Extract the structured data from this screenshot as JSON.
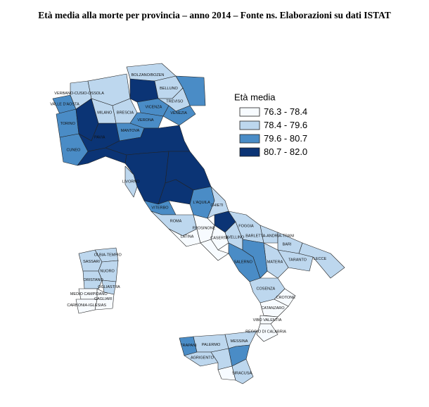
{
  "title": "Età media alla morte per provincia – anno 2014 – Fonte ns. Elaborazioni su dati ISTAT",
  "legend": {
    "title": "Età media",
    "classes": [
      {
        "label": "76.3 - 78.4",
        "color": "#f7fbff"
      },
      {
        "label": "78.4 - 79.6",
        "color": "#bdd7ee"
      },
      {
        "label": "79.6 - 80.7",
        "color": "#4a8cc6"
      },
      {
        "label": "80.7 - 82.0",
        "color": "#0b3475"
      }
    ]
  },
  "areas": [
    {
      "name": "VALLE D'AOSTA",
      "class": 2
    },
    {
      "name": "TORINO",
      "class": 2
    },
    {
      "name": "CUNEO",
      "class": 2
    },
    {
      "name": "VERBANO-CUSIO-OSSOLA",
      "class": 1
    },
    {
      "class": 3
    },
    {
      "class": 3
    },
    {
      "name": "PAVIA",
      "class": 3
    },
    {
      "class": 1
    },
    {
      "name": "MILANO",
      "class": 1
    },
    {
      "name": "BRESCIA",
      "class": 1
    },
    {
      "name": "BOLZANO/BOZEN",
      "class": 1
    },
    {
      "class": 3
    },
    {
      "name": "BELLUNO",
      "class": 1
    },
    {
      "class": 2
    },
    {
      "name": "VICENZA",
      "class": 2
    },
    {
      "name": "TREVISO",
      "class": 1
    },
    {
      "name": "VENEZIA",
      "class": 2
    },
    {
      "name": "VERONA",
      "class": 2
    },
    {
      "name": "MANTOVA",
      "class": 2
    },
    {
      "class": 3
    },
    {
      "class": 3
    },
    {
      "name": "LIVORNO",
      "class": 1
    },
    {
      "class": 3
    },
    {
      "class": 3
    },
    {
      "name": "VITERBO",
      "class": 2
    },
    {
      "name": "L'AQUILA",
      "class": 2
    },
    {
      "name": "CHIETI",
      "class": 1
    },
    {
      "name": "ROMA",
      "class": 1
    },
    {
      "name": "LATINA",
      "class": 0
    },
    {
      "name": "FROSINONE",
      "class": 0
    },
    {
      "class": 3
    },
    {
      "name": "FOGGIA",
      "class": 1
    },
    {
      "name": "BARLETTA-ANDRIA-TRANI",
      "class": 1
    },
    {
      "name": "BARI",
      "class": 1
    },
    {
      "name": "TARANTO",
      "class": 1
    },
    {
      "name": "LECCE",
      "class": 1
    },
    {
      "name": "CASERTA",
      "class": 0
    },
    {
      "class": 0
    },
    {
      "name": "AVELLINO",
      "class": 1
    },
    {
      "name": "SALERNO",
      "class": 2
    },
    {
      "name": "MATERA",
      "class": 1
    },
    {
      "class": 2
    },
    {
      "name": "COSENZA",
      "class": 1
    },
    {
      "name": "CROTONE",
      "class": 0
    },
    {
      "name": "CATANZARO",
      "class": 0
    },
    {
      "name": "VIBO VALENTIA",
      "class": 0
    },
    {
      "name": "REGGIO DI CALABRIA",
      "class": 0
    },
    {
      "name": "TRAPANI",
      "class": 2
    },
    {
      "name": "PALERMO",
      "class": 1
    },
    {
      "name": "AGRIGENTO",
      "class": 1
    },
    {
      "class": 1
    },
    {
      "name": "MESSINA",
      "class": 1
    },
    {
      "class": 2
    },
    {
      "class": 0
    },
    {
      "name": "SIRACUSA",
      "class": 1
    },
    {
      "name": "OLBIA-TEMPIO",
      "class": 1
    },
    {
      "name": "SASSARI",
      "class": 1
    },
    {
      "name": "NUORO",
      "class": 1
    },
    {
      "name": "ORISTANO",
      "class": 1
    },
    {
      "name": "OGLIASTRA",
      "class": 1
    },
    {
      "name": "MEDIO CAMPIDANO",
      "class": 0
    },
    {
      "name": "CAGLIARI",
      "class": 0
    },
    {
      "name": "CARBONIA-IGLESIAS",
      "class": 0
    }
  ]
}
